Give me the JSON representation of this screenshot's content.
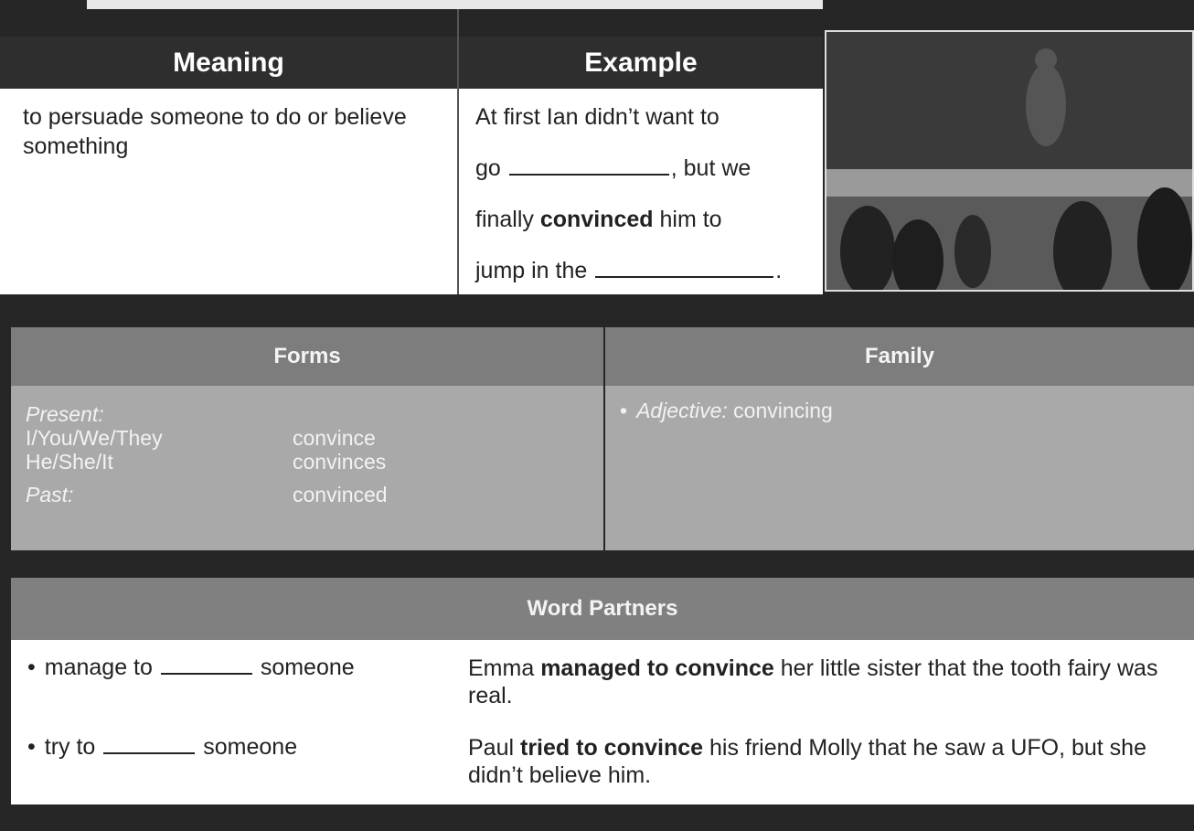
{
  "meaning_table": {
    "headers": [
      "Meaning",
      "Example"
    ],
    "meaning": "to persuade someone to do or believe something",
    "example": {
      "line1": "At first Ian didn’t want to",
      "line2_start": "go",
      "line2_end": ", but we",
      "line3_start": "finally",
      "line3_bold": "convinced",
      "line3_end": "him to",
      "line4_start": "jump in the",
      "line4_end": "."
    }
  },
  "forms": {
    "header": "Forms",
    "present_label": "Present:",
    "rows": [
      [
        "I/You/We/They",
        "convince"
      ],
      [
        "He/She/It",
        "convinces"
      ]
    ],
    "past_label": "Past:",
    "past": "convinced"
  },
  "family": {
    "header": "Family",
    "label": "Adjective:",
    "word": "convincing"
  },
  "word_partners": {
    "header": "Word Partners",
    "rows": [
      {
        "before": "manage to",
        "after": "someone",
        "example_start": "Emma",
        "example_bold": "managed to convince",
        "example_end": "her little sister that the tooth fairy was real."
      },
      {
        "before": "try to",
        "after": "someone",
        "example_start": "Paul",
        "example_bold": "tried to convince",
        "example_end": "his friend Molly that he saw a UFO, but she didn’t believe him."
      }
    ]
  }
}
